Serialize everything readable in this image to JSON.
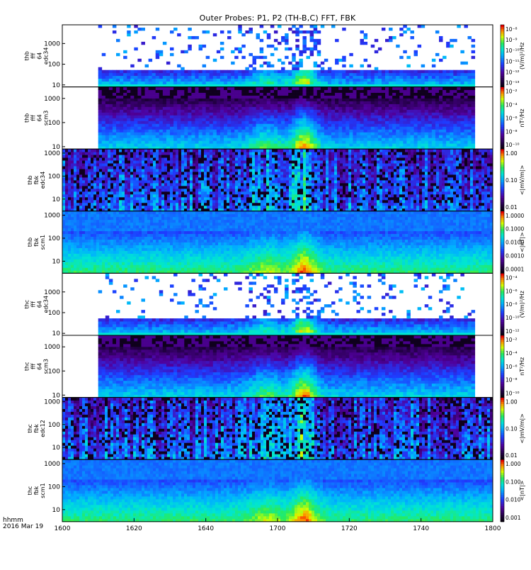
{
  "figure": {
    "title": "Outer Probes: P1, P2 (TH-B,C) FFT, FBK",
    "time_axis_label": "hhmm",
    "date_label": "2016 Mar 19"
  },
  "chart_data": {
    "type": "heatmap",
    "title": "Outer Probes: P1, P2 (TH-B,C) FFT, FBK",
    "x_ticks": [
      "1600",
      "1620",
      "1640",
      "1700",
      "1720",
      "1740",
      "1800"
    ],
    "x_range": [
      0,
      120
    ],
    "panels": [
      {
        "id": "thb-fff-e34",
        "ylabel": [
          "thb",
          "fff",
          "64",
          "edc34"
        ],
        "y_ticks": [
          "10",
          "100",
          "1000"
        ],
        "y_log": true,
        "y_range": [
          8,
          8000
        ],
        "data_start_min": 10,
        "data_end_min": 115,
        "style": "sparse",
        "colorbar": {
          "label": "(V/m)²/Hz",
          "log": true,
          "labels": [
            "10⁻⁸",
            "10⁻⁹",
            "10⁻¹⁰",
            "10⁻¹¹",
            "10⁻¹²",
            "10⁻¹³"
          ]
        }
      },
      {
        "id": "thb-fff-scm3",
        "ylabel": [
          "thb",
          "fff",
          "64",
          "scm3"
        ],
        "y_ticks": [
          "10",
          "100",
          "1000"
        ],
        "y_log": true,
        "y_range": [
          8,
          3000
        ],
        "data_start_min": 10,
        "data_end_min": 115,
        "style": "dense",
        "colorbar": {
          "label": "nT²/Hz",
          "log": true,
          "labels": [
            "10⁻²",
            "10⁻⁴",
            "10⁻⁶",
            "10⁻⁸",
            "10⁻¹⁰"
          ]
        }
      },
      {
        "id": "thb-fbk-e34",
        "ylabel": [
          "thb",
          "fbk",
          "edc34"
        ],
        "y_ticks": [
          "10",
          "100",
          "1000"
        ],
        "y_log": true,
        "y_range": [
          3,
          1500
        ],
        "data_start_min": 0,
        "data_end_min": 120,
        "style": "blocks",
        "colorbar": {
          "label": "<|mV/m|>",
          "log": true,
          "labels": [
            "1.00",
            "0.10",
            "0.01"
          ]
        }
      },
      {
        "id": "thb-fbk-scm1",
        "ylabel": [
          "thb",
          "fbk",
          "scm1"
        ],
        "y_ticks": [
          "10",
          "100",
          "1000"
        ],
        "y_log": true,
        "y_range": [
          3,
          1500
        ],
        "data_start_min": 0,
        "data_end_min": 120,
        "style": "bands",
        "colorbar": {
          "label": "<|nT|>",
          "log": true,
          "labels": [
            "1.0000",
            "0.1000",
            "0.0100",
            "0.0010",
            "0.0001"
          ]
        }
      },
      {
        "id": "thc-fff-e34",
        "ylabel": [
          "thc",
          "fff",
          "64",
          "edc34"
        ],
        "y_ticks": [
          "10",
          "100",
          "1000"
        ],
        "y_log": true,
        "y_range": [
          8,
          8000
        ],
        "data_start_min": 10,
        "data_end_min": 115,
        "style": "sparse",
        "colorbar": {
          "label": "(V/m)²/Hz",
          "log": true,
          "labels": [
            "10⁻⁴",
            "10⁻⁶",
            "10⁻⁸",
            "10⁻¹⁰",
            "10⁻¹²"
          ]
        }
      },
      {
        "id": "thc-fff-scm3",
        "ylabel": [
          "thc",
          "fff",
          "64",
          "scm3"
        ],
        "y_ticks": [
          "10",
          "100",
          "1000"
        ],
        "y_log": true,
        "y_range": [
          8,
          3000
        ],
        "data_start_min": 10,
        "data_end_min": 115,
        "style": "dense",
        "colorbar": {
          "label": "nT²/Hz",
          "log": true,
          "labels": [
            "10⁻²",
            "10⁻⁴",
            "10⁻⁶",
            "10⁻⁸",
            "10⁻¹⁰"
          ]
        }
      },
      {
        "id": "thc-fbk-e12",
        "ylabel": [
          "thc",
          "fbk",
          "edc12"
        ],
        "y_ticks": [
          "10",
          "100",
          "1000"
        ],
        "y_log": true,
        "y_range": [
          3,
          1500
        ],
        "data_start_min": 0,
        "data_end_min": 120,
        "style": "blocks",
        "colorbar": {
          "label": "<|mV/m|>",
          "log": true,
          "labels": [
            "1.00",
            "0.10",
            "0.01"
          ]
        }
      },
      {
        "id": "thc-fbk-scm1",
        "ylabel": [
          "thc",
          "fbk",
          "scm1"
        ],
        "y_ticks": [
          "10",
          "100",
          "1000"
        ],
        "y_log": true,
        "y_range": [
          3,
          1500
        ],
        "data_start_min": 0,
        "data_end_min": 120,
        "style": "bands",
        "colorbar": {
          "label": "<|nT|>",
          "log": true,
          "labels": [
            "1.000",
            "0.100",
            "0.010",
            "0.001"
          ]
        }
      }
    ]
  }
}
